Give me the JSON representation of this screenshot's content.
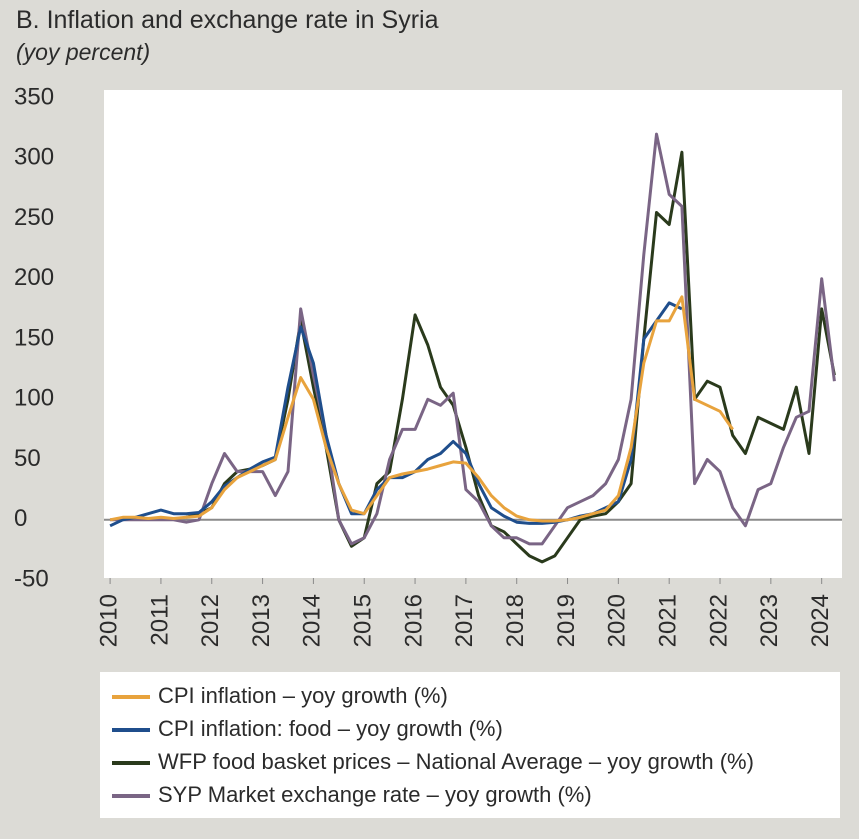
{
  "chart_data": {
    "type": "line",
    "title": "B. Inflation and exchange rate in Syria",
    "subtitle": "(yoy percent)",
    "x": [
      2010,
      2010.25,
      2010.5,
      2010.75,
      2011,
      2011.25,
      2011.5,
      2011.75,
      2012,
      2012.25,
      2012.5,
      2012.75,
      2013,
      2013.25,
      2013.5,
      2013.75,
      2014,
      2014.25,
      2014.5,
      2014.75,
      2015,
      2015.25,
      2015.5,
      2015.75,
      2016,
      2016.25,
      2016.5,
      2016.75,
      2017,
      2017.25,
      2017.5,
      2017.75,
      2018,
      2018.25,
      2018.5,
      2018.75,
      2019,
      2019.25,
      2019.5,
      2019.75,
      2020,
      2020.25,
      2020.5,
      2020.75,
      2021,
      2021.25,
      2021.5,
      2021.75,
      2022,
      2022.25,
      2022.5,
      2022.75,
      2023,
      2023.25,
      2023.5,
      2023.75,
      2024,
      2024.25
    ],
    "series": [
      {
        "name": "CPI inflation – yoy growth (%)",
        "color": "#e8a33d",
        "values": [
          0,
          2,
          2,
          1,
          2,
          1,
          2,
          3,
          10,
          25,
          35,
          40,
          45,
          50,
          85,
          118,
          100,
          60,
          30,
          8,
          5,
          20,
          35,
          38,
          40,
          42,
          45,
          48,
          47,
          35,
          20,
          10,
          3,
          0,
          -1,
          -1,
          0,
          2,
          5,
          8,
          20,
          60,
          130,
          165,
          165,
          185,
          100,
          95,
          90,
          75,
          null,
          null,
          null,
          null,
          null,
          null,
          null,
          null
        ]
      },
      {
        "name": "CPI inflation: food – yoy growth (%)",
        "color": "#1f4e8c",
        "values": [
          -5,
          0,
          2,
          5,
          8,
          5,
          5,
          6,
          15,
          28,
          35,
          42,
          48,
          52,
          110,
          160,
          130,
          70,
          30,
          5,
          5,
          25,
          35,
          35,
          40,
          50,
          55,
          65,
          55,
          30,
          10,
          3,
          -2,
          -3,
          -3,
          -2,
          0,
          3,
          5,
          10,
          15,
          50,
          150,
          165,
          180,
          175,
          null,
          null,
          null,
          null,
          null,
          null,
          null,
          null,
          null,
          null,
          null,
          null
        ]
      },
      {
        "name": "WFP food basket prices – National Average – yoy growth (%)",
        "color": "#2a3a1c",
        "values": [
          null,
          null,
          null,
          null,
          null,
          null,
          2,
          5,
          10,
          30,
          40,
          42,
          45,
          50,
          100,
          165,
          110,
          60,
          0,
          -22,
          -15,
          30,
          40,
          100,
          170,
          145,
          110,
          95,
          60,
          20,
          -5,
          -10,
          -20,
          -30,
          -35,
          -30,
          -15,
          0,
          3,
          5,
          15,
          30,
          150,
          255,
          245,
          305,
          100,
          115,
          110,
          70,
          55,
          85,
          80,
          75,
          110,
          55,
          175,
          120
        ]
      },
      {
        "name": "SYP Market exchange rate – yoy growth (%)",
        "color": "#7a6585",
        "values": [
          0,
          0,
          0,
          0,
          0,
          0,
          -2,
          0,
          30,
          55,
          40,
          40,
          40,
          20,
          40,
          175,
          120,
          70,
          0,
          -20,
          -15,
          5,
          50,
          75,
          75,
          100,
          95,
          105,
          25,
          15,
          -5,
          -15,
          -15,
          -20,
          -20,
          -5,
          10,
          15,
          20,
          30,
          50,
          100,
          220,
          320,
          270,
          260,
          30,
          50,
          40,
          10,
          -5,
          25,
          30,
          60,
          85,
          90,
          200,
          115
        ]
      }
    ],
    "xlim": [
      2009.88,
      2024.4
    ],
    "xticks": [
      2010,
      2011,
      2012,
      2013,
      2014,
      2015,
      2016,
      2017,
      2018,
      2019,
      2020,
      2021,
      2022,
      2023,
      2024
    ],
    "ylim": [
      -50,
      350
    ],
    "yticks": [
      -50,
      0,
      50,
      100,
      150,
      200,
      250,
      300,
      350
    ],
    "legend": "bottom"
  }
}
